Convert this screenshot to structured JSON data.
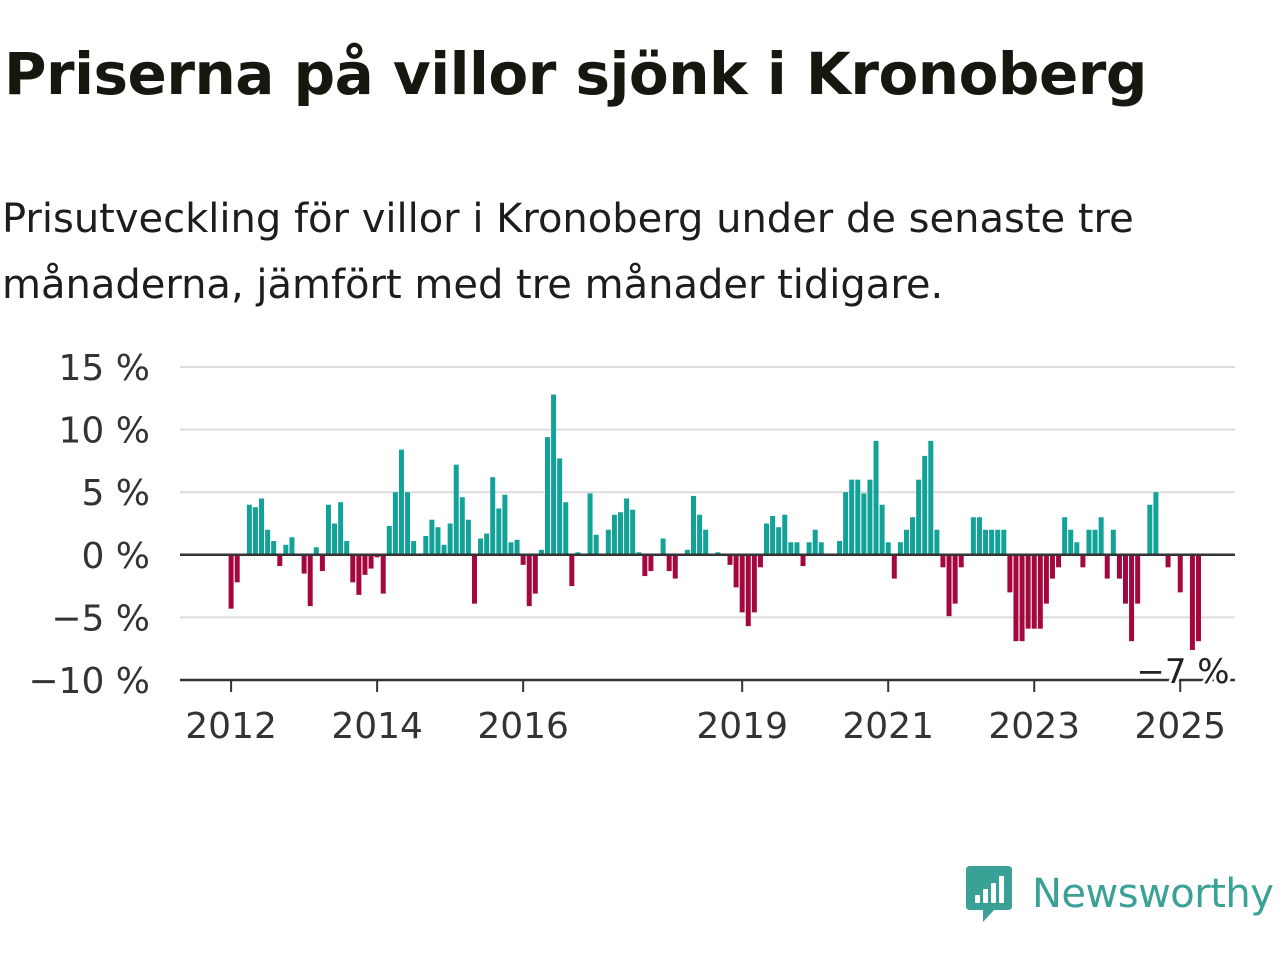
{
  "header": {
    "title": "Priserna på villor sjönk i Kronoberg",
    "subtitle": "Prisutveckling för villor i Kronoberg under de senaste tre månaderna, jämfört med tre månader tidigare."
  },
  "brand": {
    "name": "Newsworthy",
    "color": "#3aa197"
  },
  "colors": {
    "positive": "#12a297",
    "negative": "#a3073e",
    "grid": "#dcdcdc",
    "axis": "#333333"
  },
  "chart_data": {
    "type": "bar",
    "title": "Priserna på villor sjönk i Kronoberg",
    "subtitle": "Prisutveckling för villor i Kronoberg under de senaste tre månaderna, jämfört med tre månader tidigare.",
    "ylim": [
      -10,
      15
    ],
    "yticks": [
      15,
      10,
      5,
      0,
      -5,
      -10
    ],
    "ytick_labels": [
      "15 %",
      "10 %",
      "5 %",
      "0 %",
      "−5 %",
      "−10 %"
    ],
    "xlim": [
      2011.3,
      2025.75
    ],
    "xticks": [
      2012,
      2014,
      2016,
      2019,
      2021,
      2023,
      2025
    ],
    "xtick_labels": [
      "2012",
      "2014",
      "2016",
      "2019",
      "2021",
      "2023",
      "2025"
    ],
    "grid": true,
    "start_date": "2012-01",
    "values": [
      -4.3,
      -2.2,
      -0.1,
      4.0,
      3.8,
      4.5,
      2.0,
      1.1,
      -0.9,
      0.8,
      1.4,
      0.1,
      -1.5,
      -4.1,
      0.6,
      -1.3,
      4.0,
      2.5,
      4.2,
      1.1,
      -2.2,
      -3.2,
      -1.6,
      -1.1,
      -0.2,
      -3.1,
      2.3,
      5.0,
      8.4,
      5.0,
      1.1,
      0.0,
      1.5,
      2.8,
      2.2,
      0.8,
      2.5,
      7.2,
      4.6,
      2.8,
      -3.9,
      1.3,
      1.7,
      6.2,
      3.7,
      4.8,
      1.0,
      1.2,
      -0.8,
      -4.1,
      -3.1,
      0.4,
      9.4,
      12.8,
      7.7,
      4.2,
      -2.5,
      0.2,
      0.0,
      4.9,
      1.6,
      0.0,
      2.0,
      3.2,
      3.4,
      4.5,
      3.6,
      0.2,
      -1.7,
      -1.3,
      0.0,
      1.3,
      -1.3,
      -1.9,
      0.0,
      0.4,
      4.7,
      3.2,
      2.0,
      0.0,
      0.2,
      0.0,
      -0.8,
      -2.6,
      -4.6,
      -5.7,
      -4.6,
      -1.0,
      2.5,
      3.1,
      2.2,
      3.2,
      1.0,
      1.0,
      -0.9,
      1.0,
      2.0,
      1.0,
      0.0,
      0.0,
      1.1,
      5.0,
      6.0,
      6.0,
      4.9,
      6.0,
      9.1,
      4.0,
      1.0,
      -1.9,
      1.0,
      2.0,
      3.0,
      6.0,
      7.9,
      9.1,
      2.0,
      -1.0,
      -4.9,
      -3.9,
      -1.0,
      0.0,
      3.0,
      3.0,
      2.0,
      2.0,
      2.0,
      2.0,
      -3.0,
      -6.9,
      -6.9,
      -5.9,
      -5.9,
      -5.9,
      -3.9,
      -1.9,
      -1.0,
      3.0,
      2.0,
      1.0,
      -1.0,
      2.0,
      2.0,
      3.0,
      -1.9,
      2.0,
      -1.9,
      -3.9,
      -6.9,
      -3.9,
      0.0,
      4.0,
      5.0,
      0.0,
      -1.0,
      0.0,
      -3.0,
      0.0,
      -7.6,
      -6.9
    ],
    "annotations": [
      {
        "text": "−7 %",
        "value": -7
      }
    ]
  }
}
